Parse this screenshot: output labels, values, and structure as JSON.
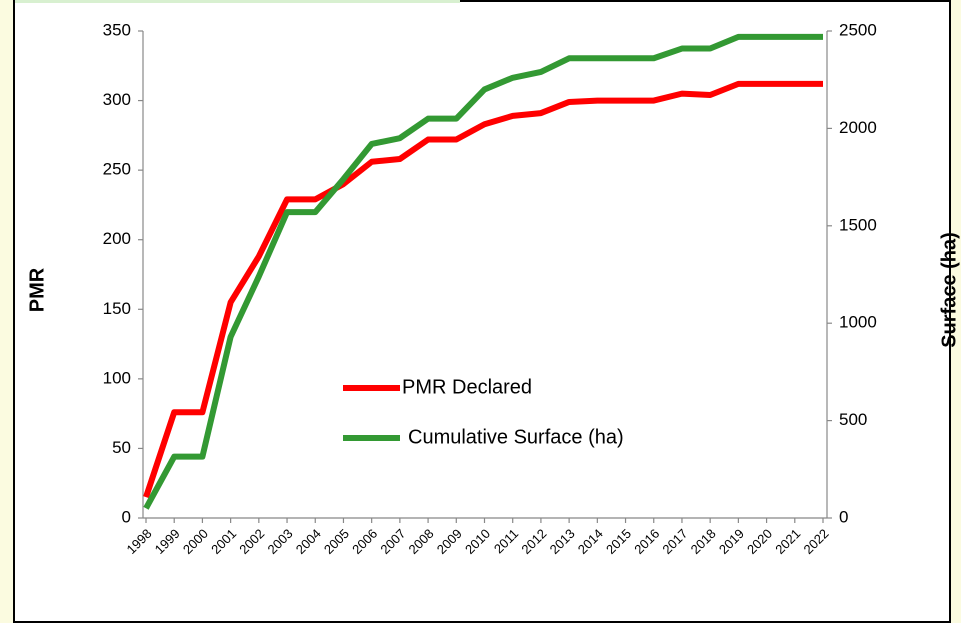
{
  "chart_data": {
    "type": "line",
    "categories": [
      "1998",
      "1999",
      "2000",
      "2001",
      "2002",
      "2003",
      "2004",
      "2005",
      "2006",
      "2007",
      "2008",
      "2009",
      "2010",
      "2011",
      "2012",
      "2013",
      "2014",
      "2015",
      "2016",
      "2017",
      "2018",
      "2019",
      "2020",
      "2021",
      "2022"
    ],
    "series": [
      {
        "name": "PMR Declared",
        "color": "#ff0000",
        "values": [
          15,
          76,
          76,
          155,
          188,
          229,
          229,
          240,
          256,
          258,
          272,
          272,
          283,
          289,
          291,
          299,
          300,
          300,
          300,
          305,
          304,
          312,
          312,
          312,
          312
        ]
      },
      {
        "name": "Cumulative Surface (ha)",
        "color": "#339933",
        "axis": "y2",
        "values": [
          50,
          315,
          315,
          930,
          1240,
          1570,
          1570,
          1740,
          1920,
          1950,
          2050,
          2050,
          2200,
          2260,
          2290,
          2360,
          2360,
          2360,
          2360,
          2410,
          2410,
          2470,
          2470,
          2470,
          2470
        ]
      }
    ],
    "ylabel": "PMR",
    "y2label": "Surface (ha)",
    "ylim": [
      0,
      350
    ],
    "yticks": [
      0,
      50,
      100,
      150,
      200,
      250,
      300,
      350
    ],
    "y2lim": [
      0,
      2500
    ],
    "y2ticks": [
      0,
      500,
      1000,
      1500,
      2000,
      2500
    ],
    "grid": false
  }
}
